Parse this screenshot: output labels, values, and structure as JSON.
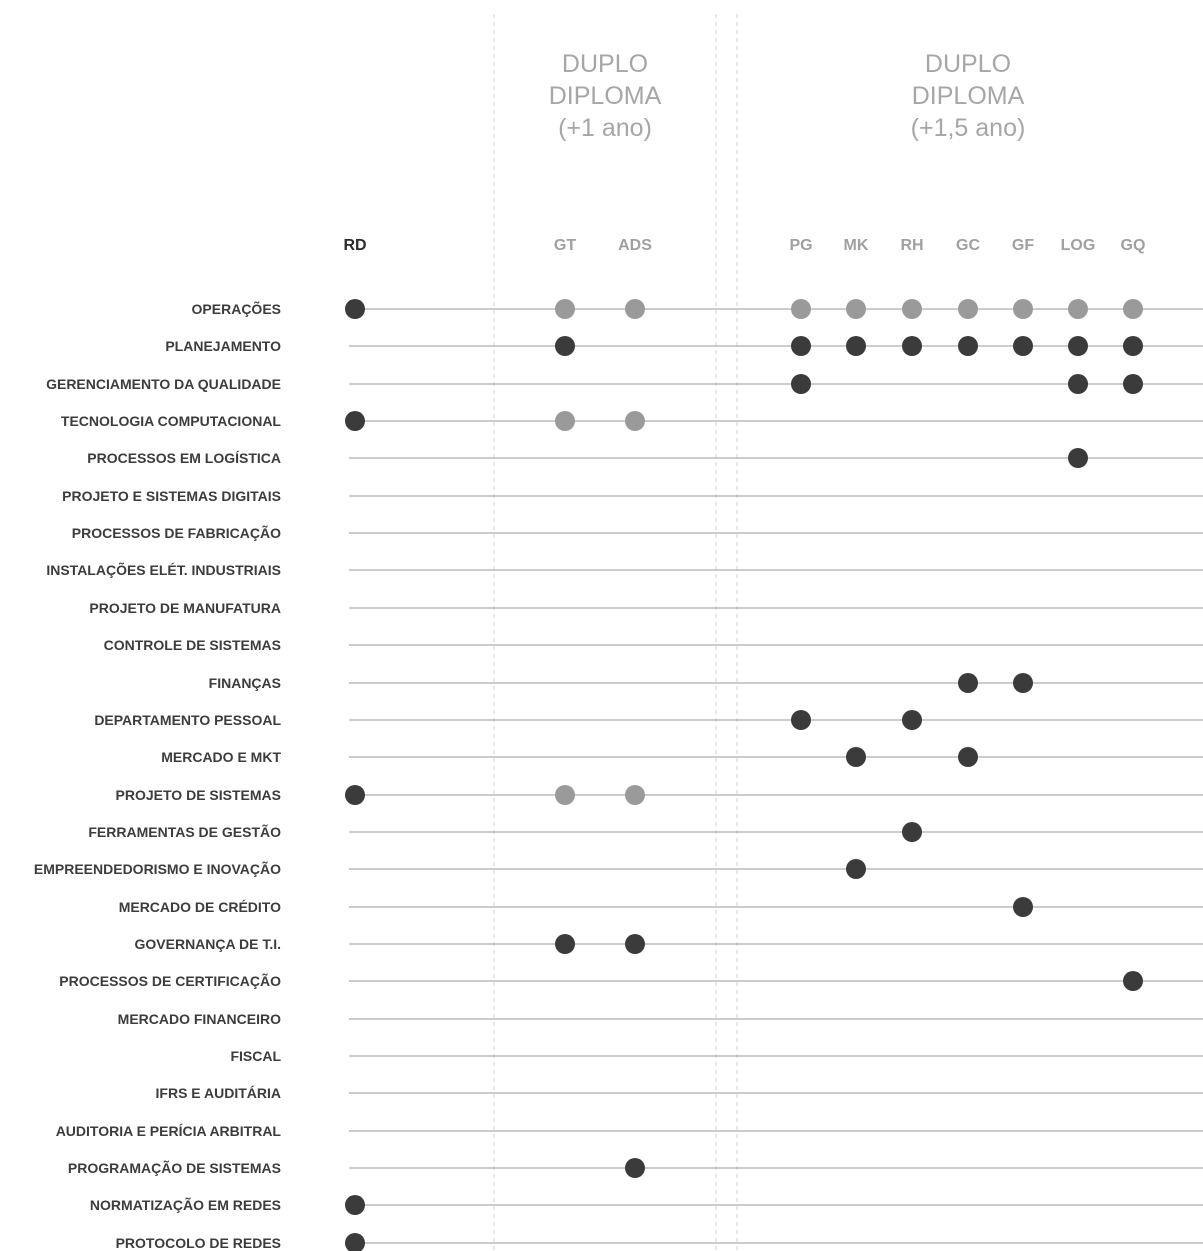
{
  "groups": [
    {
      "id": "dd1",
      "title_lines": [
        "DUPLO",
        "DIPLOMA",
        "(+1 ano)"
      ]
    },
    {
      "id": "dd15",
      "title_lines": [
        "DUPLO",
        "DIPLOMA",
        "(+1,5 ano)"
      ]
    }
  ],
  "columns": [
    {
      "code": "RD",
      "style": "dark"
    },
    {
      "code": "GT",
      "style": "muted"
    },
    {
      "code": "ADS",
      "style": "muted"
    },
    {
      "code": "PG",
      "style": "muted"
    },
    {
      "code": "MK",
      "style": "muted"
    },
    {
      "code": "RH",
      "style": "muted"
    },
    {
      "code": "GC",
      "style": "muted"
    },
    {
      "code": "GF",
      "style": "muted"
    },
    {
      "code": "LOG",
      "style": "muted"
    },
    {
      "code": "GQ",
      "style": "muted"
    }
  ],
  "rows": [
    {
      "label": "OPERAÇÕES",
      "marks": {
        "RD": "dark",
        "GT": "light",
        "ADS": "light",
        "PG": "light",
        "MK": "light",
        "RH": "light",
        "GC": "light",
        "GF": "light",
        "LOG": "light",
        "GQ": "light"
      }
    },
    {
      "label": "PLANEJAMENTO",
      "marks": {
        "GT": "dark",
        "PG": "dark",
        "MK": "dark",
        "RH": "dark",
        "GC": "dark",
        "GF": "dark",
        "LOG": "dark",
        "GQ": "dark"
      }
    },
    {
      "label": "GERENCIAMENTO DA QUALIDADE",
      "marks": {
        "PG": "dark",
        "LOG": "dark",
        "GQ": "dark"
      }
    },
    {
      "label": "TECNOLOGIA COMPUTACIONAL",
      "marks": {
        "RD": "dark",
        "GT": "light",
        "ADS": "light"
      }
    },
    {
      "label": "PROCESSOS EM LOGÍSTICA",
      "marks": {
        "LOG": "dark"
      }
    },
    {
      "label": "PROJETO E SISTEMAS DIGITAIS",
      "marks": {}
    },
    {
      "label": "PROCESSOS DE FABRICAÇÃO",
      "marks": {}
    },
    {
      "label": "INSTALAÇÕES ELÉT. INDUSTRIAIS",
      "marks": {}
    },
    {
      "label": "PROJETO DE MANUFATURA",
      "marks": {}
    },
    {
      "label": "CONTROLE DE SISTEMAS",
      "marks": {}
    },
    {
      "label": "FINANÇAS",
      "marks": {
        "GC": "dark",
        "GF": "dark"
      }
    },
    {
      "label": "DEPARTAMENTO PESSOAL",
      "marks": {
        "PG": "dark",
        "RH": "dark"
      }
    },
    {
      "label": "MERCADO E MKT",
      "marks": {
        "MK": "dark",
        "GC": "dark"
      }
    },
    {
      "label": "PROJETO DE SISTEMAS",
      "marks": {
        "RD": "dark",
        "GT": "light",
        "ADS": "light"
      }
    },
    {
      "label": "FERRAMENTAS DE GESTÃO",
      "marks": {
        "RH": "dark"
      }
    },
    {
      "label": "EMPREENDEDORISMO E INOVAÇÃO",
      "marks": {
        "MK": "dark"
      }
    },
    {
      "label": "MERCADO DE CRÉDITO",
      "marks": {
        "GF": "dark"
      }
    },
    {
      "label": "GOVERNANÇA DE T.I.",
      "marks": {
        "GT": "dark",
        "ADS": "dark"
      }
    },
    {
      "label": "PROCESSOS DE CERTIFICAÇÃO",
      "marks": {
        "GQ": "dark"
      }
    },
    {
      "label": "MERCADO FINANCEIRO",
      "marks": {}
    },
    {
      "label": "FISCAL",
      "marks": {}
    },
    {
      "label": "IFRS E AUDITÁRIA",
      "marks": {}
    },
    {
      "label": "AUDITORIA E PERÍCIA ARBITRAL",
      "marks": {}
    },
    {
      "label": "PROGRAMAÇÃO DE SISTEMAS",
      "marks": {
        "ADS": "dark"
      }
    },
    {
      "label": "NORMATIZAÇÃO EM REDES",
      "marks": {
        "RD": "dark"
      }
    },
    {
      "label": "PROTOCOLO DE REDES",
      "marks": {
        "RD": "dark"
      }
    }
  ],
  "colors": {
    "dark_dot": "#3b3b3b",
    "light_dot": "#9a9a9a",
    "dark_label": "#2b2b2b",
    "muted_label": "#a0a0a0",
    "line": "#9a9a9a"
  }
}
